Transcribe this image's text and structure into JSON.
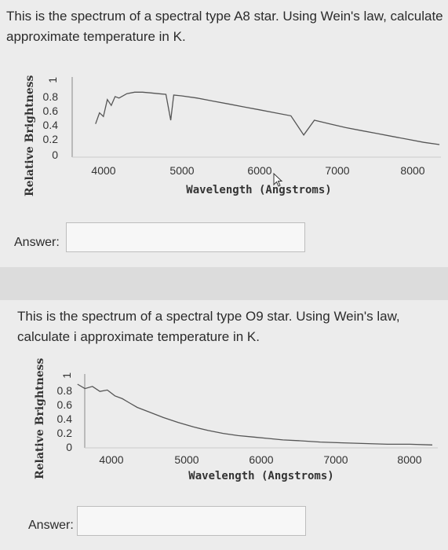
{
  "questions": [
    {
      "text": "This is the spectrum of a spectral type A8 star. Using Wein's law, calculate approximate temperature in K.",
      "answer_label": "Answer:",
      "answer_value": ""
    },
    {
      "text": "This is the spectrum of a spectral type O9 star. Using Wein's law, calculate i approximate temperature in K.",
      "answer_label": "Answer:",
      "answer_value": ""
    }
  ],
  "chart_data": [
    {
      "type": "line",
      "ylabel": "Relative Brightness",
      "xlabel": "Wavelength (Angstroms)",
      "yticks": [
        "1",
        "0.8",
        "0.6",
        "0.4",
        "0.2",
        "0"
      ],
      "xticks": [
        "4000",
        "5000",
        "6000",
        "7000",
        "8000"
      ],
      "xlim": [
        3500,
        8500
      ],
      "ylim": [
        0,
        1
      ],
      "x": [
        3900,
        3950,
        4000,
        4050,
        4100,
        4150,
        4200,
        4300,
        4400,
        4500,
        4600,
        4700,
        4800,
        4861,
        4900,
        5000,
        5200,
        5400,
        5600,
        5800,
        6000,
        6200,
        6400,
        6563,
        6700,
        6900,
        7100,
        7300,
        7500,
        7700,
        7900,
        8100,
        8300
      ],
      "y": [
        0.45,
        0.6,
        0.55,
        0.78,
        0.7,
        0.82,
        0.8,
        0.86,
        0.88,
        0.88,
        0.87,
        0.86,
        0.85,
        0.5,
        0.84,
        0.83,
        0.8,
        0.76,
        0.72,
        0.68,
        0.64,
        0.6,
        0.56,
        0.3,
        0.5,
        0.45,
        0.4,
        0.36,
        0.32,
        0.28,
        0.24,
        0.2,
        0.17
      ]
    },
    {
      "type": "line",
      "ylabel": "Relative Brightness",
      "xlabel": "Wavelength (Angstroms)",
      "yticks": [
        "1",
        "0.8",
        "0.6",
        "0.4",
        "0.2",
        "0"
      ],
      "xticks": [
        "4000",
        "5000",
        "6000",
        "7000",
        "8000"
      ],
      "xlim": [
        3500,
        8500
      ],
      "ylim": [
        0,
        1
      ],
      "x": [
        3550,
        3650,
        3750,
        3850,
        3950,
        4050,
        4150,
        4250,
        4350,
        4500,
        4700,
        4900,
        5100,
        5300,
        5500,
        5700,
        5900,
        6100,
        6300,
        6500,
        6800,
        7100,
        7400,
        7700,
        8000,
        8300
      ],
      "y": [
        0.88,
        0.82,
        0.85,
        0.78,
        0.8,
        0.72,
        0.68,
        0.62,
        0.56,
        0.5,
        0.42,
        0.35,
        0.29,
        0.24,
        0.2,
        0.17,
        0.15,
        0.13,
        0.11,
        0.1,
        0.08,
        0.07,
        0.06,
        0.05,
        0.05,
        0.04
      ]
    }
  ]
}
